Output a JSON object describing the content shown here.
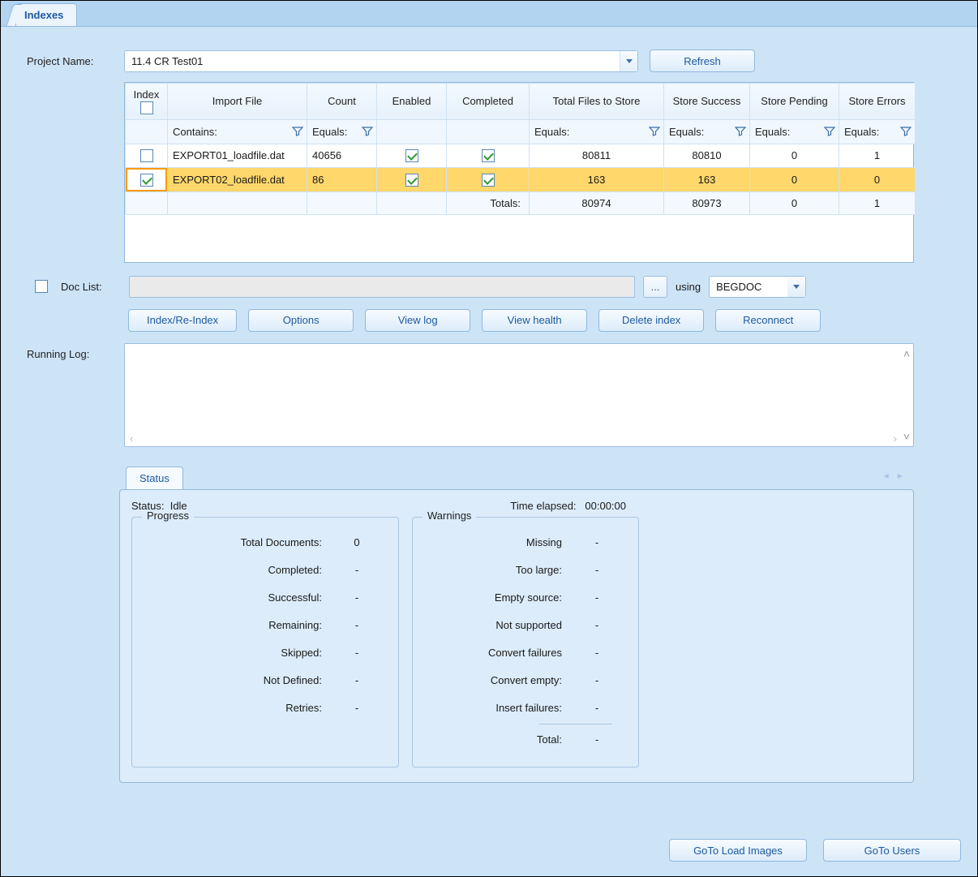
{
  "tabs": {
    "indexes": "Indexes"
  },
  "project": {
    "label": "Project Name:",
    "value": "11.4 CR Test01",
    "refresh": "Refresh"
  },
  "grid": {
    "columns": {
      "index": "Index",
      "file": "Import File",
      "count": "Count",
      "enabled": "Enabled",
      "completed": "Completed",
      "totalFiles": "Total Files to Store",
      "storeSuccess": "Store Success",
      "storePending": "Store Pending",
      "storeErrors": "Store Errors"
    },
    "filters": {
      "file": "Contains:",
      "count": "Equals:",
      "totalFiles": "Equals:",
      "storeSuccess": "Equals:",
      "storePending": "Equals:",
      "storeErrors": "Equals:"
    },
    "rows": [
      {
        "checked": false,
        "file": "EXPORT01_loadfile.dat",
        "count": "40656",
        "enabled": true,
        "completed": true,
        "totalFiles": "80811",
        "storeSuccess": "80810",
        "storePending": "0",
        "storeErrors": "1",
        "selected": false
      },
      {
        "checked": true,
        "file": "EXPORT02_loadfile.dat",
        "count": "86",
        "enabled": true,
        "completed": true,
        "totalFiles": "163",
        "storeSuccess": "163",
        "storePending": "0",
        "storeErrors": "0",
        "selected": true
      }
    ],
    "totals": {
      "label": "Totals:",
      "totalFiles": "80974",
      "storeSuccess": "80973",
      "storePending": "0",
      "storeErrors": "1"
    }
  },
  "doclist": {
    "label": "Doc List:",
    "browse": "...",
    "usingLabel": "using",
    "usingValue": "BEGDOC"
  },
  "actions": {
    "index": "Index/Re-Index",
    "options": "Options",
    "viewlog": "View log",
    "viewhealth": "View health",
    "deleteindex": "Delete index",
    "reconnect": "Reconnect"
  },
  "runlog": {
    "label": "Running Log:"
  },
  "status": {
    "tab": "Status",
    "statusLabel": "Status:",
    "statusValue": "Idle",
    "timeLabel": "Time elapsed:",
    "timeValue": "00:00:00",
    "progress": {
      "legend": "Progress",
      "items": [
        {
          "k": "Total Documents:",
          "v": "0"
        },
        {
          "k": "Completed:",
          "v": "-"
        },
        {
          "k": "Successful:",
          "v": "-"
        },
        {
          "k": "Remaining:",
          "v": "-"
        },
        {
          "k": "Skipped:",
          "v": "-"
        },
        {
          "k": "Not Defined:",
          "v": "-"
        },
        {
          "k": "Retries:",
          "v": "-"
        }
      ]
    },
    "warnings": {
      "legend": "Warnings",
      "items": [
        {
          "k": "Missing",
          "v": "-"
        },
        {
          "k": "Too large:",
          "v": "-"
        },
        {
          "k": "Empty source:",
          "v": "-"
        },
        {
          "k": "Not supported",
          "v": "-"
        },
        {
          "k": "Convert failures",
          "v": "-"
        },
        {
          "k": "Convert empty:",
          "v": "-"
        },
        {
          "k": "Insert failures:",
          "v": "-"
        }
      ],
      "totalLabel": "Total:",
      "totalValue": "-"
    }
  },
  "footer": {
    "loadImages": "GoTo Load Images",
    "users": "GoTo Users"
  },
  "colors": {
    "panel_bg": "#cde4f7",
    "tab_bg": "#ecf4fc",
    "border": "#8fb8dd",
    "link": "#1b5aa0",
    "row_selected": "#ffd76b",
    "row_selected_border": "#ff9a00",
    "grid_header": "#e6f1fb",
    "filter_row": "#f0f7fe",
    "status_panel": "#dcecfa",
    "check_green": "#2e9a2e"
  }
}
